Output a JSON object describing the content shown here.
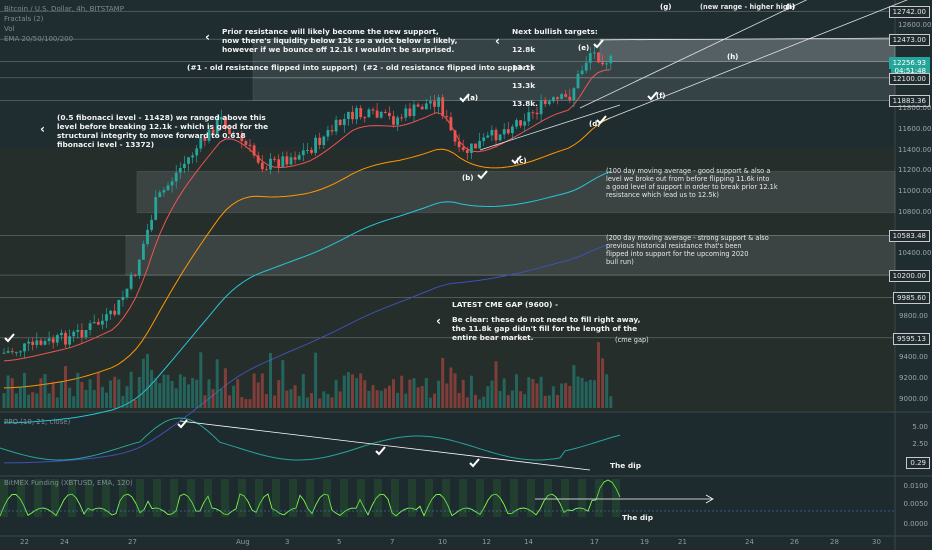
{
  "header": {
    "symbol": "Bitcoin / U.S. Dollar, 4h, BITSTAMP",
    "ind1": "Fractals (2)",
    "ind2": "Vol",
    "ind3": "EMA 20/50/100/200"
  },
  "notes": {
    "resistance": "Prior resistance will likely become the new support,\nnow there's liquidity below 12k so a wick below is likely,\nhowever if we bounce off 12.1k I wouldn't be surprised.",
    "targets_title": "Next bullish targets:",
    "targets": [
      "12.8k",
      "13.1k",
      "13.3k",
      "13.8k."
    ],
    "flip1": "(#1 - old resistance flipped into support)",
    "flip2": "(#2 - old resistance flipped into support)",
    "fib": "(0.5 fibonacci level - 11428) we ranged above this\nlevel before breaking 12.1k - which is good for the\nstructural integrity to move forward to 0.618\nfibonacci level - 13372)",
    "ma100": "(100 day moving average - good support & also a\n level we broke out from before flipping 11.6k into\na good level of support in order to break prior 12.1k\nresistance which lead us to 12.5k)",
    "ma200": "(200 day moving average - strong support & also\nprevious historical resistance that's been\nflipped into support for the upcoming 2020\nbull run)",
    "cme_title": "LATEST CME GAP (9600) -",
    "cme_body": "Be clear: these do not need to fill right away,\nthe 11.8k gap didn't fill for the length of the\nentire bear market.",
    "cme_gap": "(cme gap)",
    "range": "(new range - higher high)",
    "dip1": "The dip",
    "dip2": "The dip"
  },
  "waves": {
    "a": "(a)",
    "b": "(b)",
    "c": "(c)",
    "d": "(d)",
    "e": "(e)",
    "f": "(f)",
    "g": "(g)",
    "h": "(h)",
    "i": "(i)"
  },
  "osc": {
    "ppo_label": "PPO (10, 21, close)",
    "bitmex_label": "BitMEX Funding (XBTUSD, EMA, 120)",
    "ppo_ticks": [
      "5.00",
      "2.50",
      "0.29"
    ],
    "bitmex_ticks": [
      "0.0100",
      "0.0050",
      "0.0000"
    ]
  },
  "price_axis": {
    "ticks": [
      "12742.00",
      "12600.00",
      "12473.00",
      "12256.93",
      "04:51:48",
      "12100.00",
      "11883.36",
      "11800.00",
      "11600.00",
      "11400.00",
      "11200.00",
      "11000.00",
      "10800.00",
      "10583.48",
      "10400.00",
      "10200.00",
      "9985.60",
      "9800.00",
      "9595.13",
      "9400.00",
      "9200.00",
      "9000.00"
    ],
    "current": "12256.93",
    "countdown": "04:51:48"
  },
  "time_axis": [
    "22",
    "24",
    "27",
    "Aug",
    "3",
    "5",
    "7",
    "10",
    "12",
    "14",
    "17",
    "19",
    "21",
    "24",
    "26",
    "28",
    "30"
  ],
  "colors": {
    "up": "#26a69a",
    "down": "#ef5350",
    "ema20": "#ef5350",
    "ema50": "#ff9800",
    "ema100": "#26c6da",
    "ema200": "#3f51b5"
  },
  "chart_data": {
    "type": "candlestick",
    "title": "Bitcoin / U.S. Dollar, 4h, BITSTAMP",
    "ylim": [
      8900,
      12850
    ],
    "levels": [
      12742,
      12473,
      12256.93,
      12100,
      11883.36,
      10583.48,
      10200,
      9985.6,
      9595.13
    ],
    "support_zones": [
      [
        12100,
        12473
      ],
      [
        11883,
        12100
      ],
      [
        10800,
        11200
      ],
      [
        10200,
        10583
      ]
    ],
    "price_path": [
      {
        "x": "Jul 21",
        "close": 9450
      },
      {
        "x": "Jul 24",
        "close": 9600
      },
      {
        "x": "Jul 26",
        "close": 9800
      },
      {
        "x": "Jul 27",
        "close": 10200
      },
      {
        "x": "Jul 28",
        "close": 10900
      },
      {
        "x": "Jul 29",
        "close": 11200
      },
      {
        "x": "Jul 31",
        "close": 11700
      },
      {
        "x": "Aug 2",
        "close": 11250
      },
      {
        "x": "Aug 4",
        "close": 11400
      },
      {
        "x": "Aug 6",
        "close": 11750
      },
      {
        "x": "Aug 8",
        "close": 11700
      },
      {
        "x": "Aug 10",
        "close": 11900
      },
      {
        "x": "Aug 11",
        "close": 11350
      },
      {
        "x": "Aug 13",
        "close": 11600
      },
      {
        "x": "Aug 15",
        "close": 11850
      },
      {
        "x": "Aug 16",
        "close": 11900
      },
      {
        "x": "Aug 17",
        "close": 12350
      },
      {
        "x": "Aug 18",
        "close": 12256.93
      }
    ]
  }
}
